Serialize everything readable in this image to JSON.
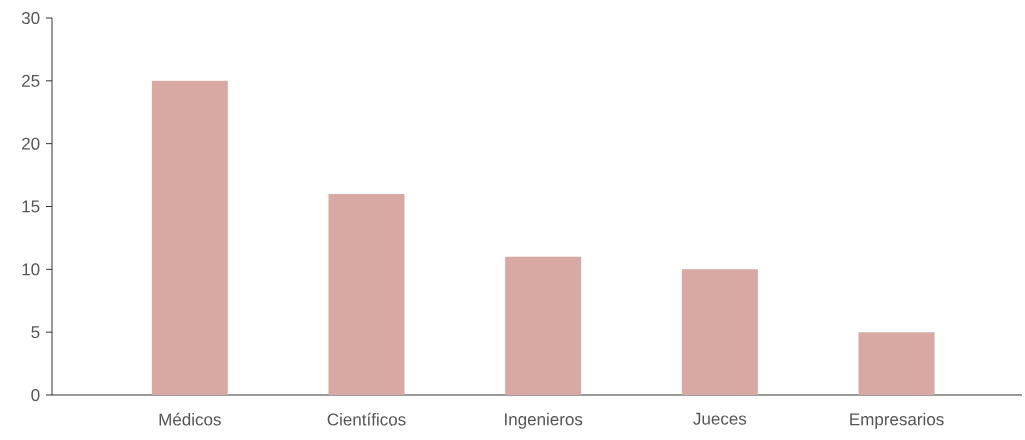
{
  "chart_data": {
    "type": "bar",
    "categories": [
      "Médicos",
      "Científicos",
      "Ingenieros",
      "Jueces",
      "Empresarios"
    ],
    "values": [
      25,
      16,
      11,
      10,
      5
    ],
    "color": "#d8a8a2",
    "ylim": [
      0,
      30
    ],
    "yticks": [
      0,
      5,
      10,
      15,
      20,
      25,
      30
    ],
    "grid": false
  }
}
